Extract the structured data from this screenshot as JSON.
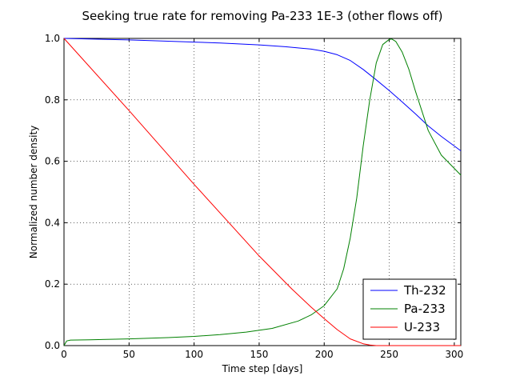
{
  "chart_data": {
    "type": "line",
    "title": "Seeking true rate for removing Pa-233 1E-3 (other flows off)",
    "xlabel": "Time step [days]",
    "ylabel": "Normalized number density",
    "xlim": [
      0,
      305
    ],
    "ylim": [
      0,
      1.0
    ],
    "x_ticks": [
      0,
      50,
      100,
      150,
      200,
      250,
      300
    ],
    "y_ticks": [
      0.0,
      0.2,
      0.4,
      0.6,
      0.8,
      1.0
    ],
    "x_tick_labels": [
      "0",
      "50",
      "100",
      "150",
      "200",
      "250",
      "300"
    ],
    "y_tick_labels": [
      "0.0",
      "0.2",
      "0.4",
      "0.6",
      "0.8",
      "1.0"
    ],
    "grid": true,
    "legend_position": "lower-right",
    "series": [
      {
        "name": "Th-232",
        "color": "#0000ff",
        "x": [
          0,
          20,
          50,
          80,
          100,
          120,
          150,
          170,
          190,
          200,
          210,
          220,
          230,
          240,
          250,
          260,
          270,
          280,
          290,
          305
        ],
        "y": [
          1.0,
          0.998,
          0.995,
          0.991,
          0.988,
          0.985,
          0.979,
          0.973,
          0.965,
          0.958,
          0.947,
          0.928,
          0.899,
          0.865,
          0.83,
          0.793,
          0.755,
          0.715,
          0.681,
          0.634
        ]
      },
      {
        "name": "Pa-233",
        "color": "#008000",
        "x": [
          0,
          2,
          5,
          20,
          50,
          80,
          100,
          120,
          140,
          160,
          180,
          190,
          200,
          210,
          215,
          220,
          225,
          230,
          235,
          240,
          245,
          250,
          252,
          255,
          260,
          265,
          270,
          280,
          290,
          305
        ],
        "y": [
          0.0,
          0.015,
          0.018,
          0.019,
          0.022,
          0.026,
          0.03,
          0.036,
          0.044,
          0.056,
          0.08,
          0.1,
          0.13,
          0.185,
          0.25,
          0.35,
          0.48,
          0.65,
          0.8,
          0.92,
          0.98,
          0.997,
          0.998,
          0.99,
          0.955,
          0.9,
          0.83,
          0.7,
          0.62,
          0.555
        ]
      },
      {
        "name": "U-233",
        "color": "#ff0000",
        "x": [
          0,
          50,
          100,
          150,
          175,
          190,
          200,
          210,
          220,
          230,
          235,
          240,
          250,
          305
        ],
        "y": [
          1.0,
          0.765,
          0.525,
          0.292,
          0.185,
          0.125,
          0.088,
          0.052,
          0.022,
          0.006,
          0.002,
          0.0,
          0.0,
          0.0
        ]
      }
    ]
  }
}
